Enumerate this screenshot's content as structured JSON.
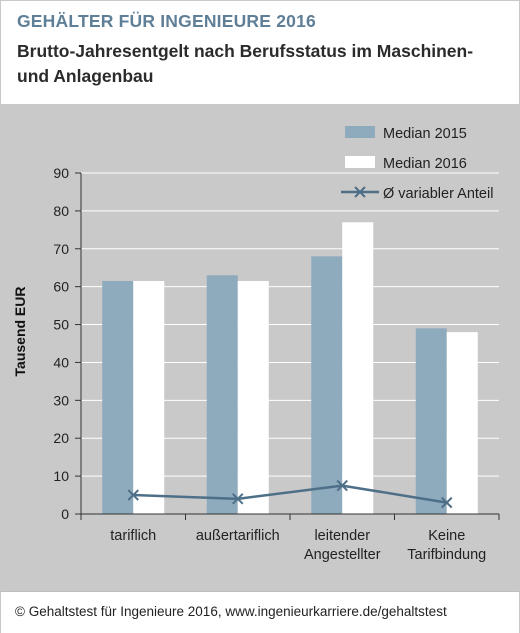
{
  "header": {
    "title": "GEHÄLTER FÜR INGENIEURE 2016",
    "subtitle": "Brutto-Jahresentgelt nach Berufsstatus im Maschinen- und Anlagenbau"
  },
  "footer": {
    "text": "© Gehaltstest für Ingenieure 2016, www.ingenieurkarriere.de/gehaltstest"
  },
  "colors": {
    "median_2015": "#8eaabd",
    "median_2016": "#ffffff",
    "variable": "#4e6f88",
    "plot_background": "#c9c9c9",
    "title_accent": "#5f7f97"
  },
  "chart_data": {
    "type": "bar",
    "title": "Brutto-Jahresentgelt nach Berufsstatus im Maschinen- und Anlagenbau",
    "ylabel": "Tausend EUR",
    "xlabel": "",
    "ylim": [
      0,
      90
    ],
    "yticks": [
      0,
      10,
      20,
      30,
      40,
      50,
      60,
      70,
      80,
      90
    ],
    "grid": true,
    "legend_position": "top-right",
    "categories": [
      [
        "tariflich"
      ],
      [
        "außertariflich"
      ],
      [
        "leitender",
        "Angestellter"
      ],
      [
        "Keine",
        "Tarifbindung"
      ]
    ],
    "series": [
      {
        "name": "Median 2015",
        "kind": "bar",
        "values": [
          61.5,
          63,
          68,
          49
        ]
      },
      {
        "name": "Median 2016",
        "kind": "bar",
        "values": [
          61.5,
          61.5,
          77,
          48
        ]
      },
      {
        "name": "Ø variabler Anteil",
        "kind": "line",
        "values": [
          5,
          4,
          7.5,
          3
        ]
      }
    ]
  }
}
